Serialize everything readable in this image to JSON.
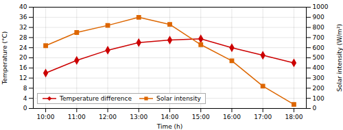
{
  "chart_data": {
    "type": "line",
    "xlabel": "Time (h)",
    "ylabel": "Temperature (°C)",
    "y2label": "Solar intensity (W/m²)",
    "x": [
      10,
      11,
      12,
      13,
      14,
      15,
      16,
      17,
      18
    ],
    "xlim": [
      9.6,
      18.4
    ],
    "xticks": [
      {
        "value": 10,
        "label": "10:00"
      },
      {
        "value": 11,
        "label": "11:00"
      },
      {
        "value": 12,
        "label": "12:00"
      },
      {
        "value": 13,
        "label": "13:00"
      },
      {
        "value": 14,
        "label": "14:00"
      },
      {
        "value": 15,
        "label": "15:00"
      },
      {
        "value": 16,
        "label": "16:00"
      },
      {
        "value": 17,
        "label": "17:00"
      },
      {
        "value": 18,
        "label": "18:00"
      }
    ],
    "ylim": [
      0,
      40
    ],
    "yticks": [
      0,
      4,
      8,
      12,
      16,
      20,
      24,
      28,
      32,
      36,
      40
    ],
    "y2lim": [
      0,
      1000
    ],
    "y2ticks": [
      0,
      100,
      200,
      300,
      400,
      500,
      600,
      700,
      800,
      900,
      1000
    ],
    "series": [
      {
        "name": "Temperature difference",
        "color": "#cc0000",
        "marker": "diamond",
        "values": [
          14,
          19,
          23,
          26,
          27,
          27.5,
          24,
          21,
          18
        ]
      },
      {
        "name": "Solar intensity",
        "color": "#dd6600",
        "marker": "square",
        "axis": "y2",
        "values": [
          620,
          750,
          820,
          900,
          830,
          630,
          470,
          220,
          40
        ]
      }
    ],
    "grid": true,
    "legend": "lower left"
  }
}
